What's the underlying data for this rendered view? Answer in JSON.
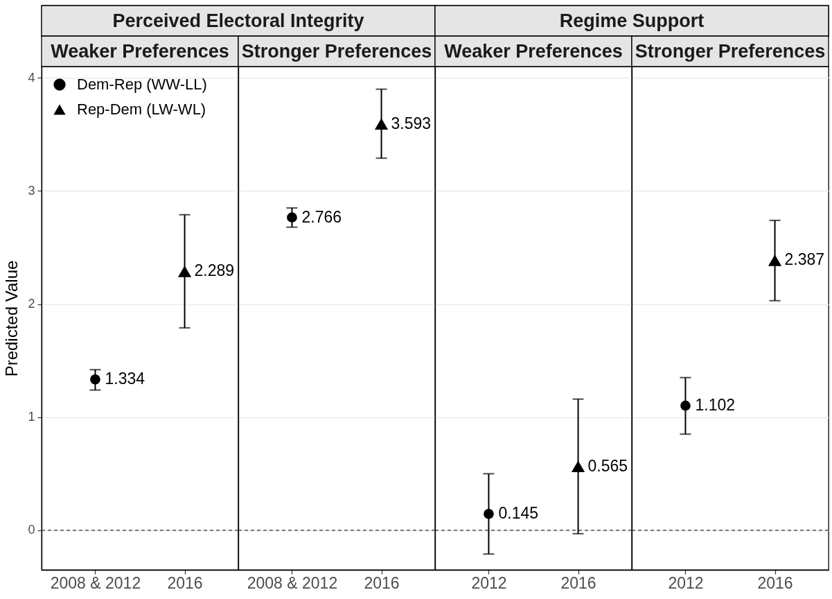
{
  "chart_data": [
    {
      "type": "scatter",
      "title": "Perceived Electoral Integrity",
      "subtitle": "Weaker Preferences",
      "ylabel": "Predicted Value",
      "categories": [
        "2008 & 2012",
        "2016"
      ],
      "series": [
        {
          "name": "Dem-Rep (WW-LL)",
          "color": "#000000",
          "marker": "circle",
          "values": [
            1.334,
            null
          ],
          "errors": [
            [
              1.24,
              1.42
            ],
            null
          ]
        },
        {
          "name": "Rep-Dem (LW-WL)",
          "color": "#000000",
          "marker": "triangle",
          "values": [
            null,
            2.289
          ],
          "errors": [
            null,
            [
              1.79,
              2.79
            ]
          ]
        }
      ],
      "ylim": [
        -0.35,
        4.1
      ],
      "yticks": [
        0,
        1,
        2,
        3,
        4
      ],
      "grid": "y",
      "legend": "top left",
      "data_labels": true,
      "ref_lines": [
        {
          "axis": "y",
          "value": 0,
          "line_style": "dashed",
          "color": "#333333"
        }
      ]
    },
    {
      "type": "scatter",
      "subtitle": "Stronger Preferences",
      "categories": [
        "2008 & 2012",
        "2016"
      ],
      "series": [
        {
          "color": "#000000",
          "marker": "circle",
          "values": [
            2.766,
            null
          ],
          "errors": [
            [
              2.68,
              2.85
            ],
            null
          ]
        },
        {
          "color": "#000000",
          "marker": "triangle",
          "values": [
            null,
            3.593
          ],
          "errors": [
            null,
            [
              3.29,
              3.9
            ]
          ]
        }
      ],
      "ylim": [
        -0.35,
        4.1
      ],
      "yticks": [
        0,
        1,
        2,
        3,
        4
      ],
      "grid": "y",
      "tick_labels": "x",
      "data_labels": true,
      "ref_lines": [
        {
          "axis": "y",
          "value": 0,
          "line_style": "dashed",
          "color": "#333333"
        }
      ]
    },
    {
      "type": "scatter",
      "title": "Regime Support",
      "subtitle": "Weaker Preferences",
      "categories": [
        "2012",
        "2016"
      ],
      "series": [
        {
          "color": "#000000",
          "marker": "circle",
          "values": [
            0.145,
            null
          ],
          "errors": [
            [
              -0.21,
              0.5
            ],
            null
          ]
        },
        {
          "color": "#000000",
          "marker": "triangle",
          "values": [
            null,
            0.565
          ],
          "errors": [
            null,
            [
              -0.03,
              1.16
            ]
          ]
        }
      ],
      "ylim": [
        -0.35,
        4.1
      ],
      "yticks": [
        0,
        1,
        2,
        3,
        4
      ],
      "grid": "y",
      "tick_labels": "x",
      "data_labels": true,
      "ref_lines": [
        {
          "axis": "y",
          "value": 0,
          "line_style": "dashed",
          "color": "#333333"
        }
      ]
    },
    {
      "type": "scatter",
      "subtitle": "Stronger Preferences",
      "categories": [
        "2012",
        "2016"
      ],
      "series": [
        {
          "color": "#000000",
          "marker": "circle",
          "values": [
            1.102,
            null
          ],
          "errors": [
            [
              0.85,
              1.35
            ],
            null
          ]
        },
        {
          "color": "#000000",
          "marker": "triangle",
          "values": [
            null,
            2.387
          ],
          "errors": [
            null,
            [
              2.03,
              2.74
            ]
          ]
        }
      ],
      "ylim": [
        -0.35,
        4.1
      ],
      "yticks": [
        0,
        1,
        2,
        3,
        4
      ],
      "grid": "y",
      "tick_labels": "x",
      "data_labels": true,
      "ref_lines": [
        {
          "axis": "y",
          "value": 0,
          "line_style": "dashed",
          "color": "#333333"
        }
      ]
    }
  ]
}
